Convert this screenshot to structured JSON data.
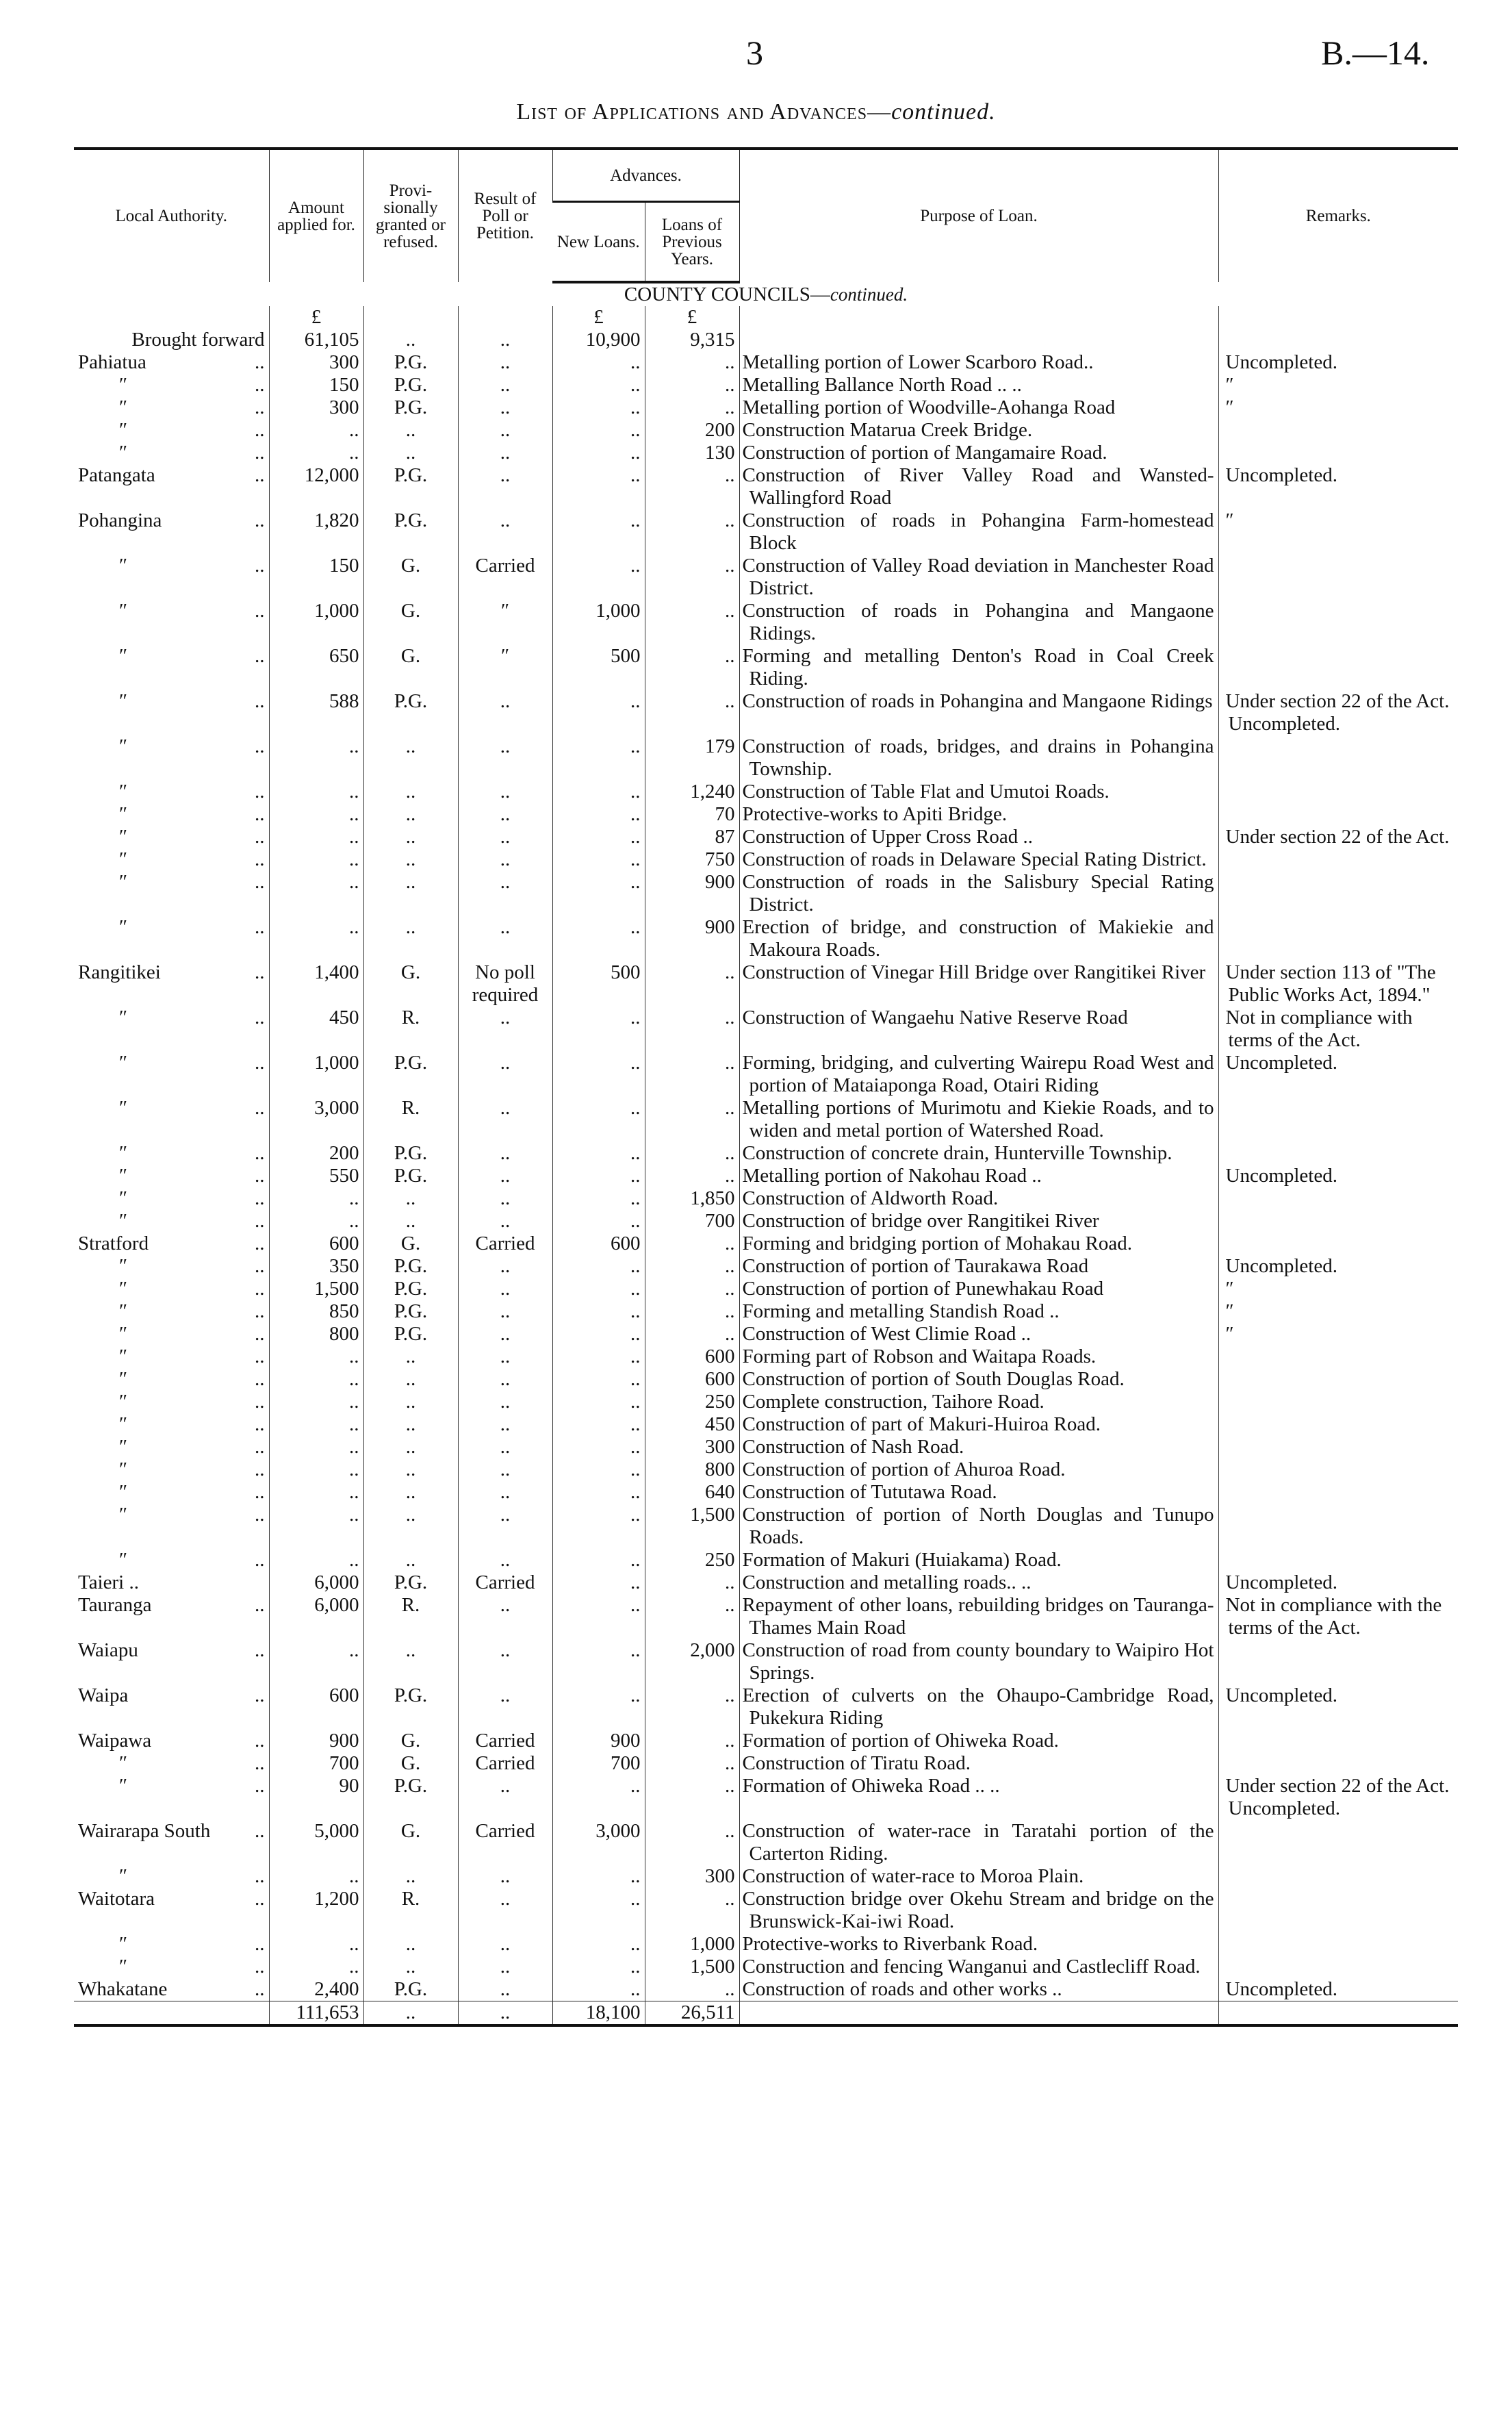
{
  "page_number": "3",
  "doc_ref": "B.—14.",
  "title": {
    "main": "List of Applications and Advances—",
    "italic": "continued."
  },
  "header": {
    "local_authority": "Local Authority.",
    "amount": "Amount applied for.",
    "provisional": "Provi-sionally granted or refused.",
    "result": "Result of Poll or Petition.",
    "advances": "Advances.",
    "new_loans": "New Loans.",
    "previous_loans": "Loans of Previous Years.",
    "purpose": "Purpose of Loan.",
    "remarks": "Remarks."
  },
  "section": {
    "main": "COUNTY COUNCILS—",
    "italic": "continued."
  },
  "currency_row": [
    "£",
    "£",
    "£"
  ],
  "brought_forward": [
    "Brought forward",
    "61,105",
    "..",
    "..",
    "10,900",
    "9,315"
  ],
  "rows": [
    [
      "Pahiatua",
      "300",
      "P.G.",
      "..",
      "..",
      "..",
      "Metalling portion of Lower Scarboro Road..",
      "Uncompleted."
    ],
    [
      "″",
      "150",
      "P.G.",
      "..",
      "..",
      "..",
      "Metalling Ballance North Road .. ..",
      "″"
    ],
    [
      "″",
      "300",
      "P.G.",
      "..",
      "..",
      "..",
      "Metalling portion of Woodville-Aohanga Road",
      "″"
    ],
    [
      "″",
      "..",
      "..",
      "..",
      "..",
      "200",
      "Construction Matarua Creek Bridge.",
      ""
    ],
    [
      "″",
      "..",
      "..",
      "..",
      "..",
      "130",
      "Construction of portion of Mangamaire Road.",
      ""
    ],
    [
      "Patangata",
      "12,000",
      "P.G.",
      "..",
      "..",
      "..",
      "Construction of River Valley Road and Wansted-Wallingford Road",
      "Uncompleted."
    ],
    [
      "Pohangina",
      "1,820",
      "P.G.",
      "..",
      "..",
      "..",
      "Construction of roads in Pohangina Farm-homestead Block",
      "″"
    ],
    [
      "″",
      "150",
      "G.",
      "Carried",
      "..",
      "..",
      "Construction of Valley Road deviation in Manchester Road District.",
      ""
    ],
    [
      "″",
      "1,000",
      "G.",
      "″",
      "1,000",
      "..",
      "Construction of roads in Pohangina and Mangaone Ridings.",
      ""
    ],
    [
      "″",
      "650",
      "G.",
      "″",
      "500",
      "..",
      "Forming and metalling Denton's Road in Coal Creek Riding.",
      ""
    ],
    [
      "″",
      "588",
      "P.G.",
      "..",
      "..",
      "..",
      "Construction of roads in Pohangina and Mangaone Ridings",
      "Under section 22 of the Act. Uncompleted."
    ],
    [
      "″",
      "..",
      "..",
      "..",
      "..",
      "179",
      "Construction of roads, bridges, and drains in Pohangina Township.",
      ""
    ],
    [
      "″",
      "..",
      "..",
      "..",
      "..",
      "1,240",
      "Construction of Table Flat and Umutoi Roads.",
      ""
    ],
    [
      "″",
      "..",
      "..",
      "..",
      "..",
      "70",
      "Protective-works to Apiti Bridge.",
      ""
    ],
    [
      "″",
      "..",
      "..",
      "..",
      "..",
      "87",
      "Construction of Upper Cross Road ..",
      "Under section 22 of the Act."
    ],
    [
      "″",
      "..",
      "..",
      "..",
      "..",
      "750",
      "Construction of roads in Delaware Special Rating District.",
      ""
    ],
    [
      "″",
      "..",
      "..",
      "..",
      "..",
      "900",
      "Construction of roads in the Salisbury Special Rating District.",
      ""
    ],
    [
      "″",
      "..",
      "..",
      "..",
      "..",
      "900",
      "Erection of bridge, and construction of Makiekie and Makoura Roads.",
      ""
    ],
    [
      "Rangitikei",
      "1,400",
      "G.",
      "No poll required",
      "500",
      "..",
      "Construction of Vinegar Hill Bridge over Rangitikei River",
      "Under section 113 of \"The Public Works Act, 1894.\""
    ],
    [
      "″",
      "450",
      "R.",
      "..",
      "..",
      "..",
      "Construction of Wangaehu Native Reserve Road",
      "Not in compliance with terms of the Act."
    ],
    [
      "″",
      "1,000",
      "P.G.",
      "..",
      "..",
      "..",
      "Forming, bridging, and culverting Wairepu Road West and portion of Mataiaponga Road, Otairi Riding",
      "Uncompleted."
    ],
    [
      "″",
      "3,000",
      "R.",
      "..",
      "..",
      "..",
      "Metalling portions of Murimotu and Kiekie Roads, and to widen and metal portion of Watershed Road.",
      ""
    ],
    [
      "″",
      "200",
      "P.G.",
      "..",
      "..",
      "..",
      "Construction of concrete drain, Hunterville Township.",
      ""
    ],
    [
      "″",
      "550",
      "P.G.",
      "..",
      "..",
      "..",
      "Metalling portion of Nakohau Road ..",
      "Uncompleted."
    ],
    [
      "″",
      "..",
      "..",
      "..",
      "..",
      "1,850",
      "Construction of Aldworth Road.",
      ""
    ],
    [
      "″",
      "..",
      "..",
      "..",
      "..",
      "700",
      "Construction of bridge over Rangitikei River",
      ""
    ],
    [
      "Stratford",
      "600",
      "G.",
      "Carried",
      "600",
      "..",
      "Forming and bridging portion of Mohakau Road.",
      ""
    ],
    [
      "″",
      "350",
      "P.G.",
      "..",
      "..",
      "..",
      "Construction of portion of Taurakawa Road",
      "Uncompleted."
    ],
    [
      "″",
      "1,500",
      "P.G.",
      "..",
      "..",
      "..",
      "Construction of portion of Punewhakau Road",
      "″"
    ],
    [
      "″",
      "850",
      "P.G.",
      "..",
      "..",
      "..",
      "Forming and metalling Standish Road ..",
      "″"
    ],
    [
      "″",
      "800",
      "P.G.",
      "..",
      "..",
      "..",
      "Construction of West Climie Road ..",
      "″"
    ],
    [
      "″",
      "..",
      "..",
      "..",
      "..",
      "600",
      "Forming part of Robson and Waitapa Roads.",
      ""
    ],
    [
      "″",
      "..",
      "..",
      "..",
      "..",
      "600",
      "Construction of portion of South Douglas Road.",
      ""
    ],
    [
      "″",
      "..",
      "..",
      "..",
      "..",
      "250",
      "Complete construction, Taihore Road.",
      ""
    ],
    [
      "″",
      "..",
      "..",
      "..",
      "..",
      "450",
      "Construction of part of Makuri-Huiroa Road.",
      ""
    ],
    [
      "″",
      "..",
      "..",
      "..",
      "..",
      "300",
      "Construction of Nash Road.",
      ""
    ],
    [
      "″",
      "..",
      "..",
      "..",
      "..",
      "800",
      "Construction of portion of Ahuroa Road.",
      ""
    ],
    [
      "″",
      "..",
      "..",
      "..",
      "..",
      "640",
      "Construction of Tututawa Road.",
      ""
    ],
    [
      "″",
      "..",
      "..",
      "..",
      "..",
      "1,500",
      "Construction of portion of North Douglas and Tunupo Roads.",
      ""
    ],
    [
      "″",
      "..",
      "..",
      "..",
      "..",
      "250",
      "Formation of Makuri (Huiakama) Road.",
      ""
    ],
    [
      "Taieri ..",
      "6,000",
      "P.G.",
      "Carried",
      "..",
      "..",
      "Construction and metalling roads.. ..",
      "Uncompleted."
    ],
    [
      "Tauranga",
      "6,000",
      "R.",
      "..",
      "..",
      "..",
      "Repayment of other loans, rebuilding bridges on Tauranga-Thames Main Road",
      "Not in compliance with the terms of the Act."
    ],
    [
      "Waiapu",
      "..",
      "..",
      "..",
      "..",
      "2,000",
      "Construction of road from county boundary to Waipiro Hot Springs.",
      ""
    ],
    [
      "Waipa",
      "600",
      "P.G.",
      "..",
      "..",
      "..",
      "Erection of culverts on the Ohaupo-Cambridge Road, Pukekura Riding",
      "Uncompleted."
    ],
    [
      "Waipawa",
      "900",
      "G.",
      "Carried",
      "900",
      "..",
      "Formation of portion of Ohiweka Road.",
      ""
    ],
    [
      "″",
      "700",
      "G.",
      "Carried",
      "700",
      "..",
      "Construction of Tiratu Road.",
      ""
    ],
    [
      "″",
      "90",
      "P.G.",
      "..",
      "..",
      "..",
      "Formation of Ohiweka Road .. ..",
      "Under section 22 of the Act. Uncompleted."
    ],
    [
      "Wairarapa South",
      "5,000",
      "G.",
      "Carried",
      "3,000",
      "..",
      "Construction of water-race in Taratahi portion of the Carterton Riding.",
      ""
    ],
    [
      "″",
      "..",
      "..",
      "..",
      "..",
      "300",
      "Construction of water-race to Moroa Plain.",
      ""
    ],
    [
      "Waitotara",
      "1,200",
      "R.",
      "..",
      "..",
      "..",
      "Construction bridge over Okehu Stream and bridge on the Brunswick-Kai-iwi Road.",
      ""
    ],
    [
      "″",
      "..",
      "..",
      "..",
      "..",
      "1,000",
      "Protective-works to Riverbank Road.",
      ""
    ],
    [
      "″",
      "..",
      "..",
      "..",
      "..",
      "1,500",
      "Construction and fencing Wanganui and Castlecliff Road.",
      ""
    ],
    [
      "Whakatane",
      "2,400",
      "P.G.",
      "..",
      "..",
      "..",
      "Construction of roads and other works ..",
      "Uncompleted."
    ]
  ],
  "total": [
    "",
    "111,653",
    "..",
    "..",
    "18,100",
    "26,511"
  ]
}
